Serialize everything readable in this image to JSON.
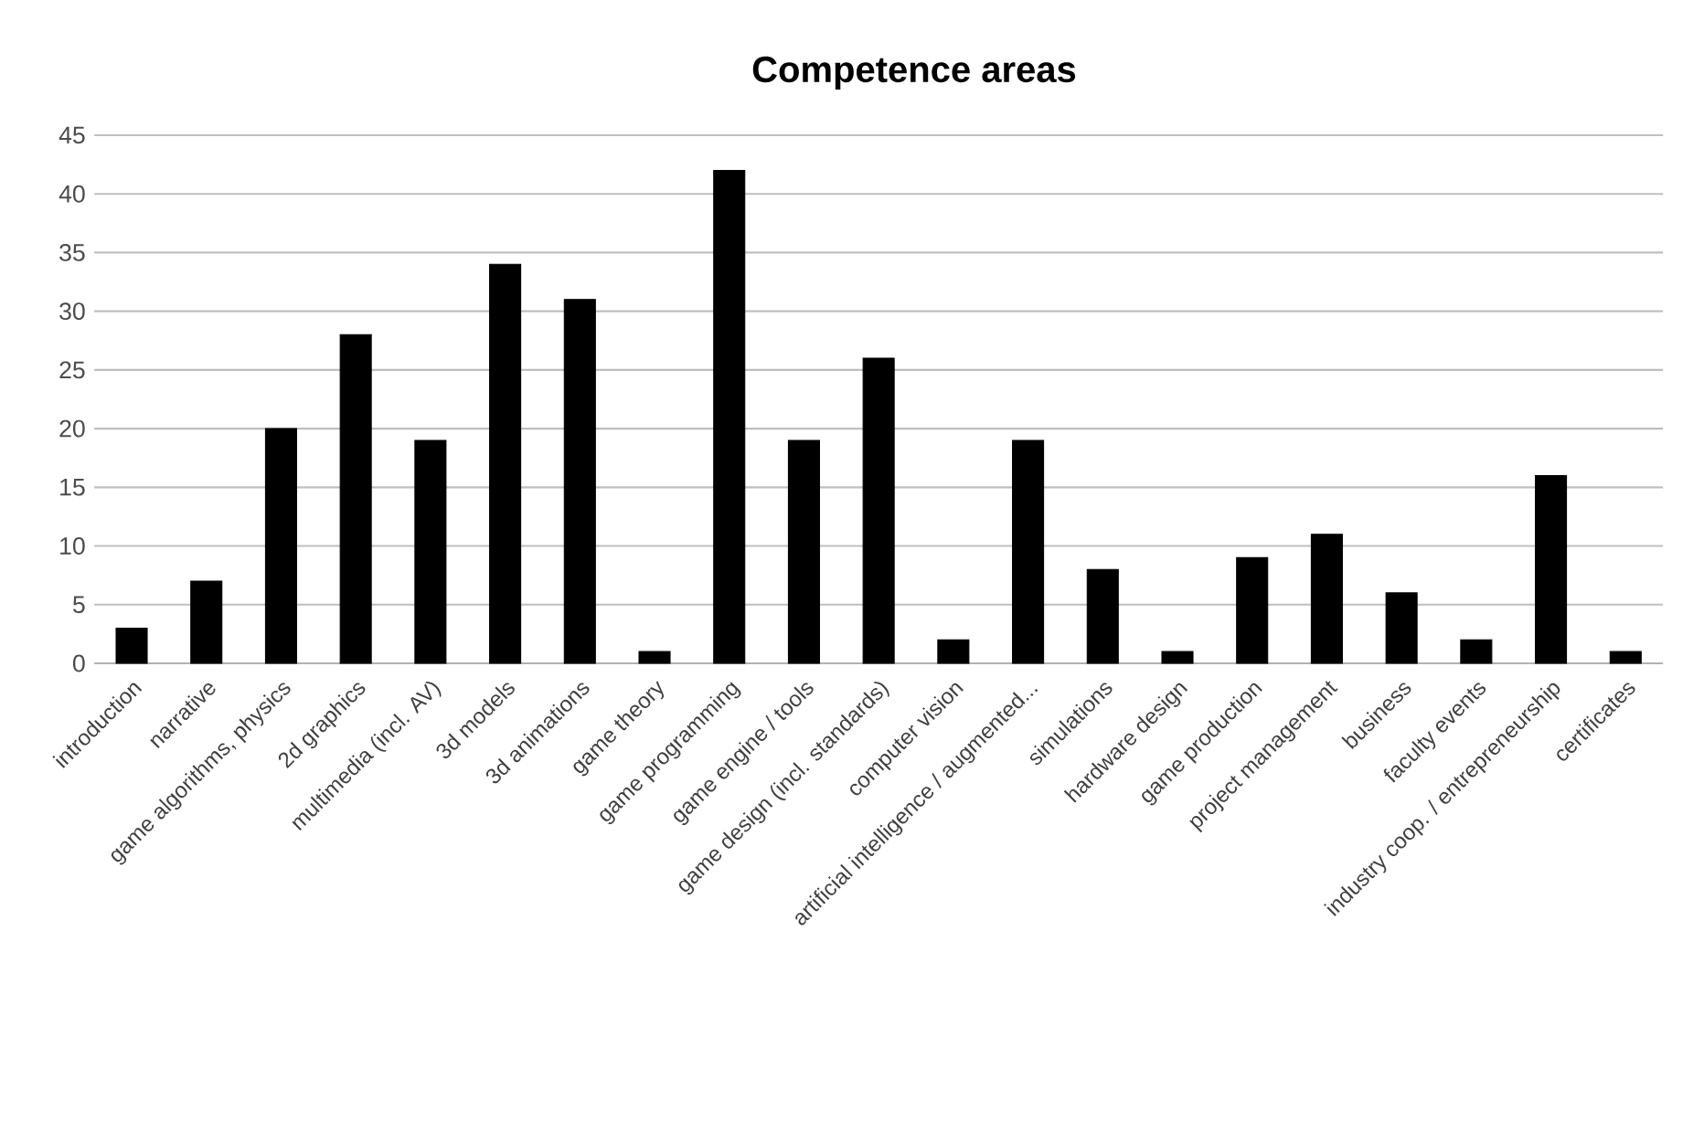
{
  "chart_data": {
    "type": "bar",
    "title": "Competence areas",
    "categories": [
      "introduction",
      "narrative",
      "game algorithms, physics",
      "2d graphics",
      "multimedia (incl. AV)",
      "3d models",
      "3d animations",
      "game theory",
      "game programming",
      "game engine / tools",
      "game design (incl. standards)",
      "computer vision",
      "artificial intelligence / augmented...",
      "simulations",
      "hardware design",
      "game production",
      "project management",
      "business",
      "faculty events",
      "industry coop. / entrepreneurship",
      "certificates"
    ],
    "values": [
      3,
      7,
      20,
      28,
      19,
      34,
      31,
      1,
      42,
      19,
      26,
      2,
      19,
      8,
      1,
      9,
      11,
      6,
      2,
      16,
      1
    ],
    "color": "#000000",
    "ylim": [
      0,
      45
    ],
    "yticks": [
      0,
      5,
      10,
      15,
      20,
      25,
      30,
      35,
      40,
      45
    ],
    "grid": "y"
  }
}
